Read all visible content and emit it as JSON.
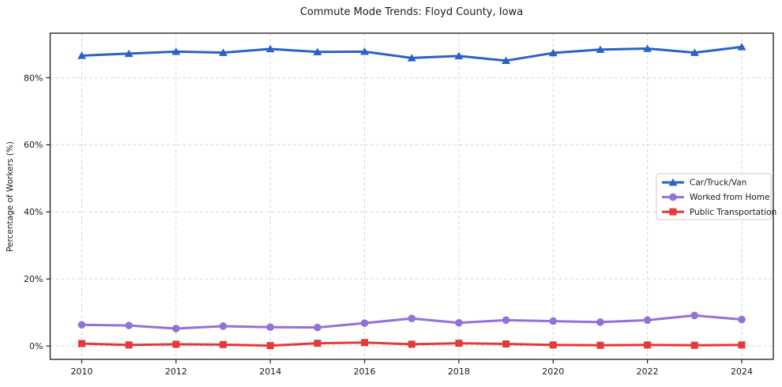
{
  "title": "Commute Mode Trends: Floyd County, Iowa",
  "ylabel": "Percentage of Workers (%)",
  "chart_data": {
    "type": "line",
    "title": "Commute Mode Trends: Floyd County, Iowa",
    "xlabel": "",
    "ylabel": "Percentage of Workers (%)",
    "x": [
      2010,
      2011,
      2012,
      2013,
      2014,
      2015,
      2016,
      2017,
      2018,
      2019,
      2020,
      2021,
      2022,
      2023,
      2024
    ],
    "series": [
      {
        "name": "Car/Truck/Van",
        "color": "#2b62c5",
        "marker": "triangle",
        "values": [
          86.6,
          87.2,
          87.8,
          87.5,
          88.6,
          87.7,
          87.8,
          85.9,
          86.5,
          85.1,
          87.4,
          88.4,
          88.7,
          87.5,
          89.2
        ]
      },
      {
        "name": "Worked from Home",
        "color": "#9272d9",
        "marker": "circle",
        "values": [
          6.3,
          6.1,
          5.2,
          5.9,
          5.6,
          5.5,
          6.8,
          8.2,
          6.9,
          7.7,
          7.4,
          7.1,
          7.7,
          9.1,
          7.9
        ]
      },
      {
        "name": "Public Transportation",
        "color": "#e23b3c",
        "marker": "square",
        "values": [
          0.7,
          0.3,
          0.5,
          0.4,
          0.1,
          0.8,
          1.0,
          0.5,
          0.8,
          0.6,
          0.3,
          0.2,
          0.3,
          0.2,
          0.3
        ]
      }
    ],
    "xticks": [
      2010,
      2012,
      2014,
      2016,
      2018,
      2020,
      2022,
      2024
    ],
    "yticks": [
      0,
      20,
      40,
      60,
      80
    ],
    "ytick_labels": [
      "0%",
      "20%",
      "40%",
      "60%",
      "80%"
    ],
    "xlim": [
      2009.33,
      2024.67
    ],
    "ylim": [
      -4.0,
      93.3
    ],
    "grid": true,
    "grid_style": "dashed",
    "legend_position": "center-right",
    "legend_labels": [
      "Car/Truck/Van",
      "Worked from Home",
      "Public Transportation"
    ]
  },
  "colors": {
    "blue_series": "#2b62c5",
    "purple_series": "#9272d9",
    "red_series": "#e23b3c",
    "grid": "#d7d7d7",
    "spine": "#1a1a1a",
    "legend_border": "#cccccc",
    "background": "#ffffff"
  }
}
